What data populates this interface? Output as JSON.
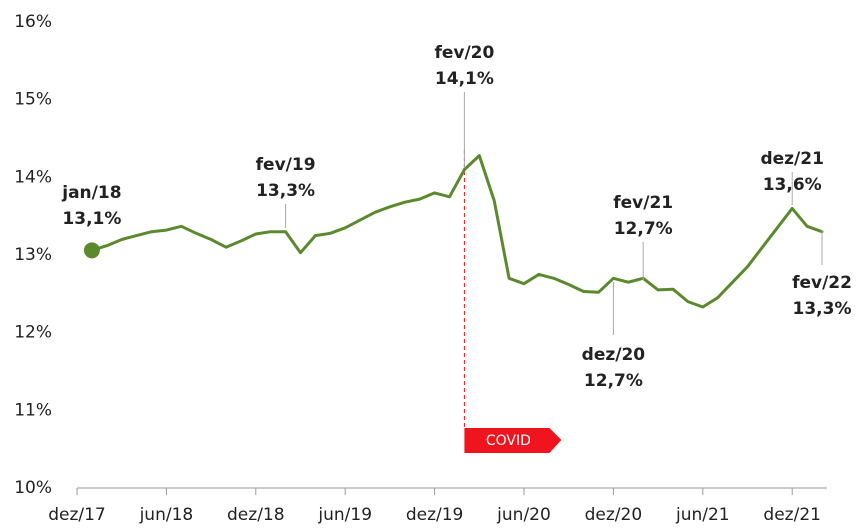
{
  "chart_data": {
    "type": "line",
    "categories": [
      "dez/17",
      null,
      null,
      null,
      null,
      null,
      "jun/18",
      null,
      null,
      null,
      null,
      null,
      "dez/18",
      null,
      null,
      null,
      null,
      null,
      "jun/19",
      null,
      null,
      null,
      null,
      null,
      "dez/19",
      null,
      null,
      null,
      null,
      null,
      "jun/20",
      null,
      null,
      null,
      null,
      null,
      "dez/20",
      null,
      null,
      null,
      null,
      null,
      "jun/21",
      null,
      null,
      null,
      null,
      null,
      "dez/21",
      null,
      null
    ],
    "series": [
      {
        "name": null,
        "color": "#5b8a2e",
        "values": [
          null,
          13.06,
          13.12,
          13.2,
          13.25,
          13.3,
          13.32,
          13.37,
          13.28,
          13.2,
          13.1,
          13.18,
          13.27,
          13.3,
          13.3,
          13.03,
          13.25,
          13.28,
          13.35,
          13.45,
          13.55,
          13.62,
          13.68,
          13.72,
          13.8,
          13.75,
          14.1,
          14.28,
          13.7,
          12.7,
          12.63,
          12.75,
          12.7,
          12.62,
          12.53,
          12.52,
          12.7,
          12.65,
          12.7,
          12.55,
          12.56,
          12.4,
          12.33,
          12.45,
          12.65,
          12.85,
          13.1,
          13.35,
          13.6,
          13.37,
          13.3
        ]
      }
    ],
    "ylim": [
      10,
      16
    ],
    "yticks": [
      {
        "value": 10,
        "label": "10%"
      },
      {
        "value": 11,
        "label": "11%"
      },
      {
        "value": 12,
        "label": "12%"
      },
      {
        "value": 13,
        "label": "13%"
      },
      {
        "value": 14,
        "label": "14%"
      },
      {
        "value": 15,
        "label": "15%"
      },
      {
        "value": 16,
        "label": "16%"
      }
    ],
    "grid": false,
    "annotations": [
      {
        "date": "jan/18",
        "label": "13,1%"
      },
      {
        "date": "fev/19",
        "label": "13,3%"
      },
      {
        "date": "fev/20",
        "label": "14,1%"
      },
      {
        "date": "dez/20",
        "label": "12,7%"
      },
      {
        "date": "fev/21",
        "label": "12,7%"
      },
      {
        "date": "dez/21",
        "label": "13,6%"
      },
      {
        "date": "fev/22",
        "label": "13,3%"
      }
    ],
    "event_label": "COVID"
  }
}
